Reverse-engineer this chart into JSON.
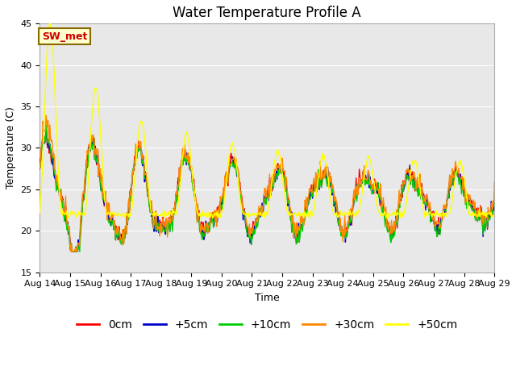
{
  "title": "Water Temperature Profile A",
  "xlabel": "Time",
  "ylabel": "Temperature (C)",
  "ylim": [
    15,
    45
  ],
  "yticks": [
    15,
    20,
    25,
    30,
    35,
    40,
    45
  ],
  "x_tick_labels": [
    "Aug 14",
    "Aug 15",
    "Aug 16",
    "Aug 17",
    "Aug 18",
    "Aug 19",
    "Aug 20",
    "Aug 21",
    "Aug 22",
    "Aug 23",
    "Aug 24",
    "Aug 25",
    "Aug 26",
    "Aug 27",
    "Aug 28",
    "Aug 29"
  ],
  "legend_labels": [
    "0cm",
    "+5cm",
    "+10cm",
    "+30cm",
    "+50cm"
  ],
  "legend_colors": [
    "#ff0000",
    "#0000cc",
    "#00cc00",
    "#ff8800",
    "#ffff00"
  ],
  "annotation_text": "SW_met",
  "annotation_color": "#cc0000",
  "annotation_bg": "#ffffcc",
  "annotation_border": "#886600",
  "plot_bg_color": "#e8e8e8",
  "title_fontsize": 12,
  "axis_fontsize": 9,
  "legend_fontsize": 10
}
